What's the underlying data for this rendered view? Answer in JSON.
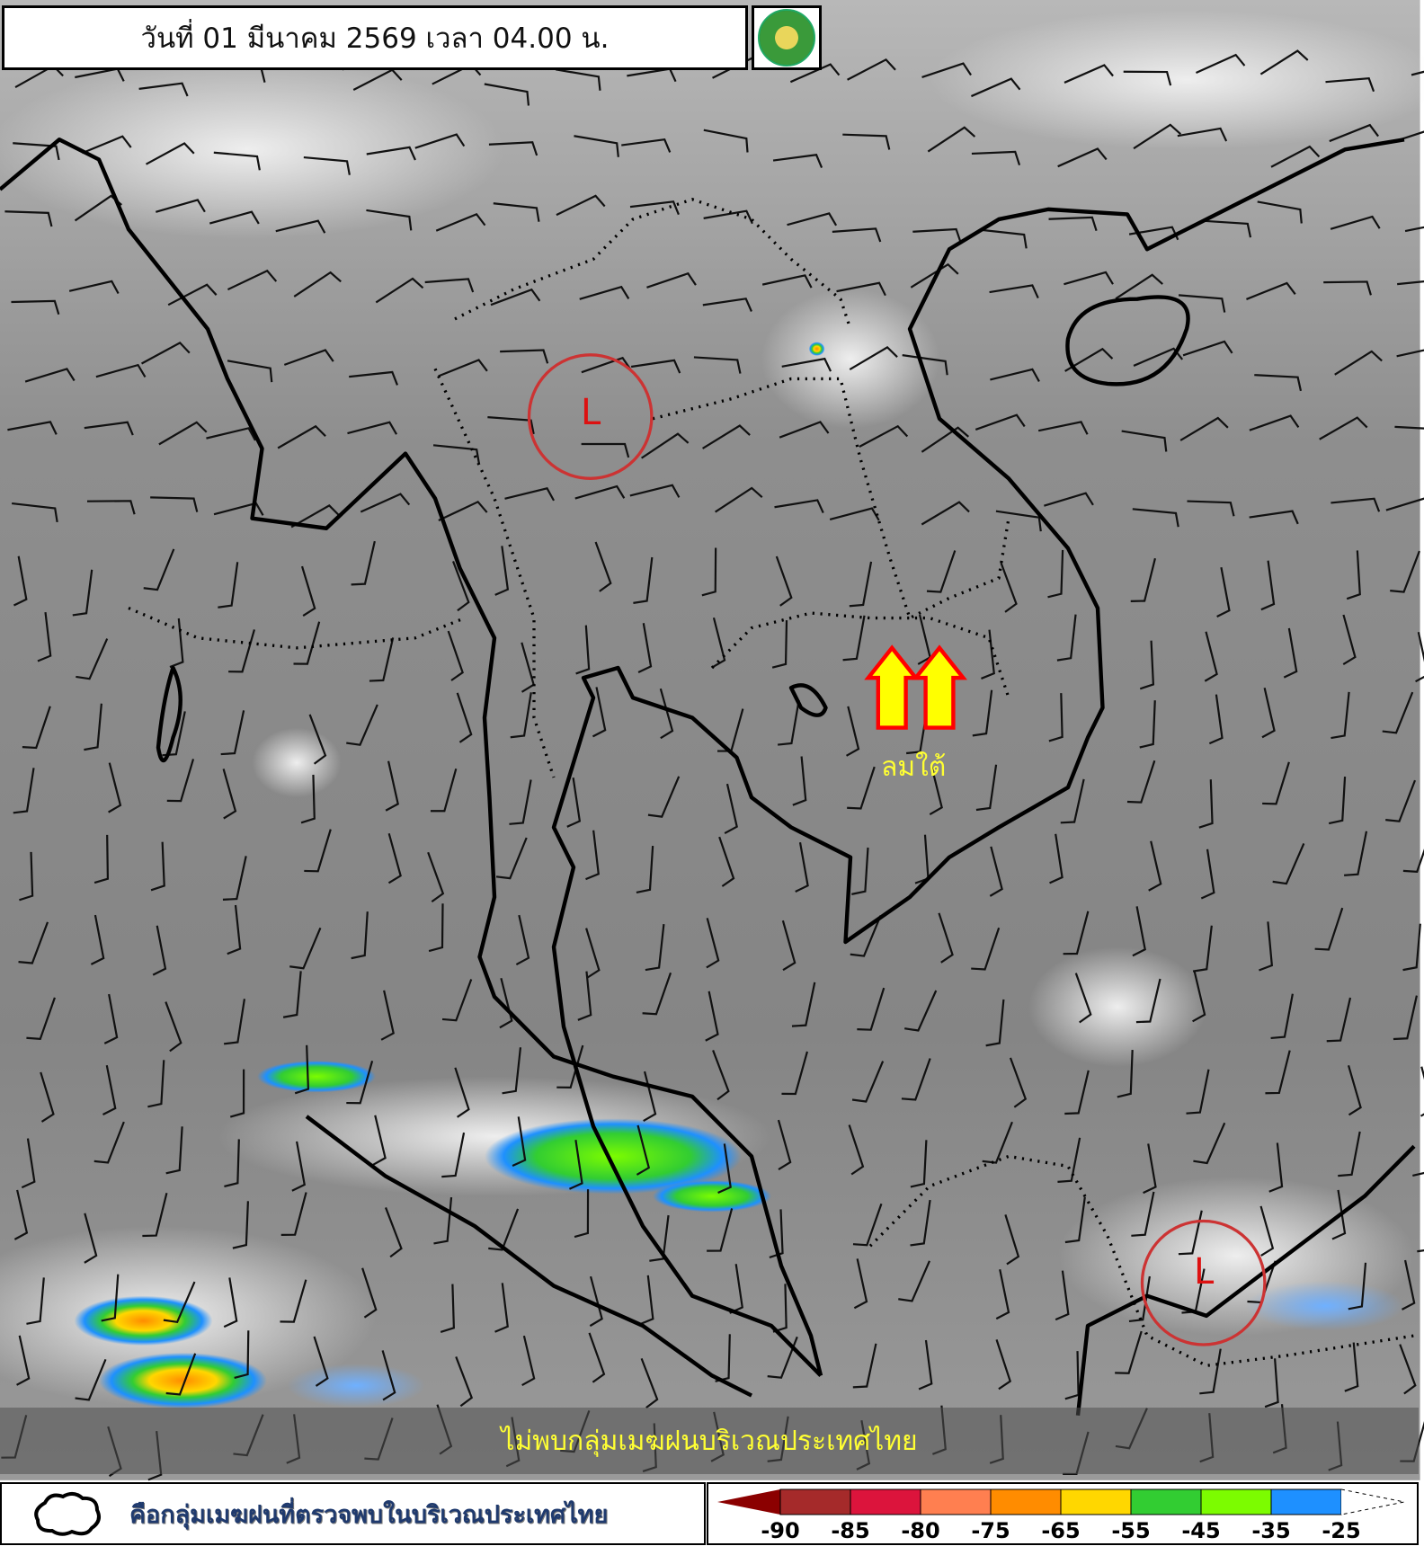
{
  "header": {
    "title": "วันที่ 01 มีนาคม 2569 เวลา 04.00 น."
  },
  "logo": {
    "name": "meteorological-department-logo"
  },
  "map": {
    "background": "infrared satellite image",
    "low_pressure_label": "L",
    "wind_label": "ลมใต้",
    "wind_arrow_color": "#ffff00",
    "wind_arrow_outline": "#ff0000",
    "circle_color": "#cc3333"
  },
  "banner": {
    "text": "ไม่พบกลุ่มเมฆฝนบริเวณประเทศไทย"
  },
  "legend": {
    "cloud_description": "คือกลุ่มเมฆฝนที่ตรวจพบในบริเวณประเทศไทย",
    "colorbar": {
      "colors": [
        "#8b0000",
        "#a52a2a",
        "#dc143c",
        "#ff7f50",
        "#ff8c00",
        "#ffd700",
        "#32cd32",
        "#7cfc00",
        "#1e90ff",
        "#ffffff"
      ],
      "labels": [
        "-90",
        "-85",
        "-80",
        "-75",
        "-65",
        "-55",
        "-45",
        "-35",
        "-25"
      ]
    }
  }
}
